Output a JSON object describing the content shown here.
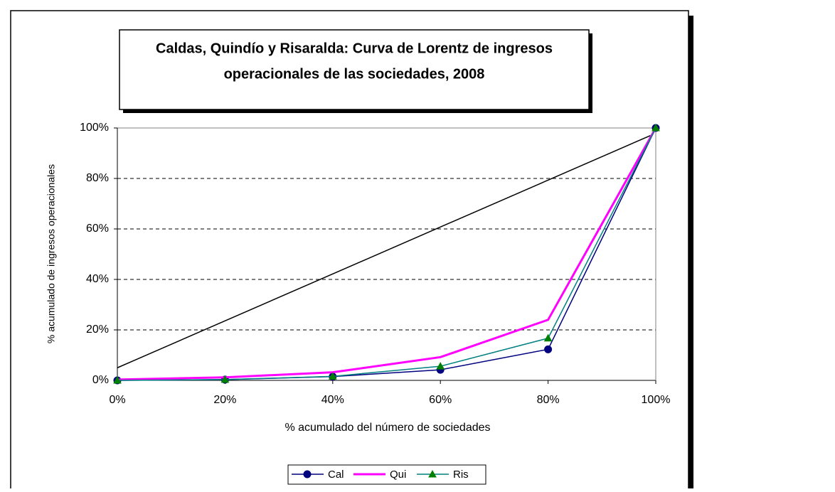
{
  "chart_data": {
    "type": "line",
    "title": [
      "Caldas, Quindío y Risaralda: Curva de Lorentz de ingresos",
      "operacionales de las sociedades, 2008"
    ],
    "x_label": "% acumulado del número de sociedades",
    "y_label": "% acumulado de ingresos operacionales",
    "x": [
      0,
      20,
      40,
      60,
      80,
      100
    ],
    "xlim": [
      0,
      100
    ],
    "xticks": [
      {
        "value": 0,
        "label": "0%"
      },
      {
        "value": 20,
        "label": "20%"
      },
      {
        "value": 40,
        "label": "40%"
      },
      {
        "value": 60,
        "label": "60%"
      },
      {
        "value": 80,
        "label": "80%"
      },
      {
        "value": 100,
        "label": "100%"
      }
    ],
    "ylim": [
      0,
      100
    ],
    "yticks": [
      {
        "value": 0,
        "label": "0%"
      },
      {
        "value": 20,
        "label": "20%"
      },
      {
        "value": 40,
        "label": "40%"
      },
      {
        "value": 60,
        "label": "60%"
      },
      {
        "value": 80,
        "label": "80%"
      },
      {
        "value": 100,
        "label": "100%"
      }
    ],
    "grid": true,
    "legend": "bottom",
    "series": [
      {
        "name": "Cal",
        "color": "#000080",
        "marker": "circle",
        "values": [
          0,
          0.3,
          1.5,
          4.2,
          12.3,
          100
        ]
      },
      {
        "name": "Qui",
        "color": "#ff00ff",
        "marker": "none",
        "values": [
          0.3,
          1.2,
          3.2,
          9.2,
          24,
          100
        ]
      },
      {
        "name": "Ris",
        "color": "#008080",
        "marker": "triangle",
        "values": [
          0,
          0.3,
          1.6,
          5.6,
          16.7,
          100
        ]
      }
    ],
    "reference_line": {
      "color": "#000000",
      "x": [
        0,
        99
      ],
      "values": [
        5,
        97
      ]
    }
  }
}
